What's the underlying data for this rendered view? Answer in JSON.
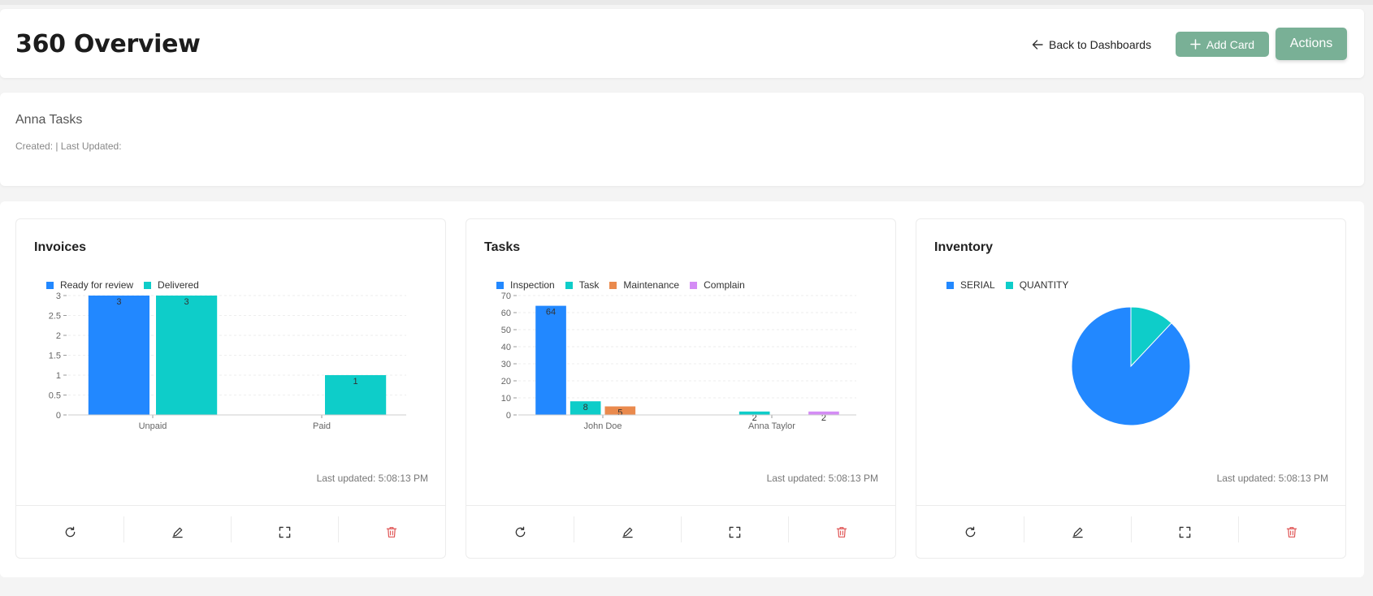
{
  "header": {
    "title": "360 Overview",
    "back_label": "Back to Dashboards",
    "add_label": "Add Card",
    "actions_label": "Actions"
  },
  "info": {
    "title": "Anna Tasks",
    "meta": "Created: | Last Updated:"
  },
  "colors": {
    "accent_green": "#79b096",
    "blue": "#2288ff",
    "teal": "#0ecdc9",
    "orange": "#ea8a4d",
    "purple": "#d48cf5",
    "delete_red": "#e05656"
  },
  "footer_icons": [
    "refresh-icon",
    "edit-icon",
    "fullscreen-icon",
    "delete-icon"
  ],
  "cards": [
    {
      "title": "Invoices",
      "updated": "Last updated: 5:08:13 PM",
      "chart_data": {
        "type": "bar",
        "categories": [
          "Unpaid",
          "Paid"
        ],
        "series": [
          {
            "name": "Ready for review",
            "color": "#2288ff",
            "values": [
              3,
              0
            ]
          },
          {
            "name": "Delivered",
            "color": "#0ecdc9",
            "values": [
              3,
              1
            ]
          }
        ],
        "yticks": [
          "0",
          "0.5",
          "1",
          "1.5",
          "2",
          "2.5",
          "3"
        ],
        "ylim": [
          0,
          3
        ],
        "grid": true,
        "legend": "top-left"
      }
    },
    {
      "title": "Tasks",
      "updated": "Last updated: 5:08:13 PM",
      "chart_data": {
        "type": "bar",
        "categories": [
          "John Doe",
          "Anna Taylor"
        ],
        "series": [
          {
            "name": "Inspection",
            "color": "#2288ff",
            "values": [
              64,
              0
            ]
          },
          {
            "name": "Task",
            "color": "#0ecdc9",
            "values": [
              8,
              2
            ]
          },
          {
            "name": "Maintenance",
            "color": "#ea8a4d",
            "values": [
              5,
              0
            ]
          },
          {
            "name": "Complain",
            "color": "#d48cf5",
            "values": [
              0,
              2
            ]
          }
        ],
        "yticks": [
          "0",
          "10",
          "20",
          "30",
          "40",
          "50",
          "60",
          "70"
        ],
        "ylim": [
          0,
          70
        ],
        "grid": true,
        "legend": "top-left"
      }
    },
    {
      "title": "Inventory",
      "updated": "Last updated: 5:08:13 PM",
      "chart_data": {
        "type": "pie",
        "series": [
          {
            "name": "SERIAL",
            "color": "#2288ff",
            "value": 88
          },
          {
            "name": "QUANTITY",
            "color": "#0ecdc9",
            "value": 12
          }
        ],
        "legend": "top-left"
      }
    }
  ]
}
